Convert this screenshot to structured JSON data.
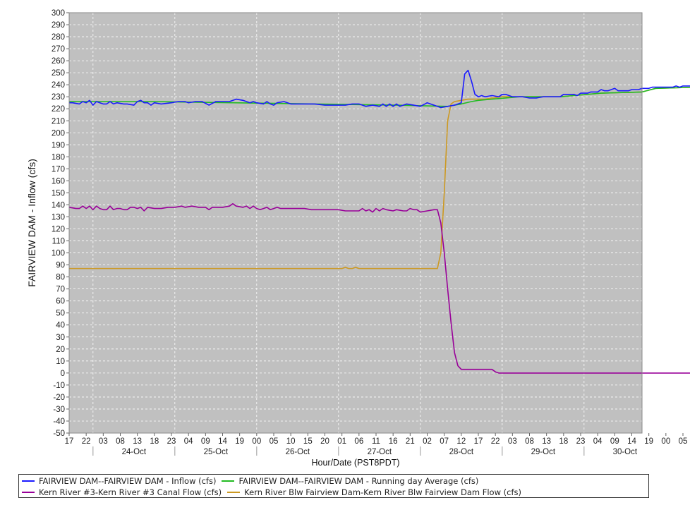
{
  "chart_data": {
    "type": "line",
    "ylabel": "FAIRVIEW DAM - Inflow (cfs)",
    "xlabel": "Hour/Date (PST8PDT)",
    "ylim": [
      -50,
      300
    ],
    "ytick_step": 10,
    "grid": true,
    "x_range_hours": [
      -7,
      161
    ],
    "hour_tick_labels": [
      "17",
      "22",
      "03",
      "08",
      "13",
      "18",
      "23",
      "04",
      "09",
      "14",
      "19",
      "00",
      "05",
      "10",
      "15",
      "20",
      "01",
      "06",
      "11",
      "16",
      "21",
      "02",
      "07",
      "12",
      "17",
      "22",
      "03",
      "08",
      "13",
      "18",
      "23",
      "04",
      "09",
      "14",
      "19",
      "00",
      "05"
    ],
    "date_labels": [
      "24-Oct",
      "25-Oct",
      "26-Oct",
      "27-Oct",
      "28-Oct",
      "29-Oct",
      "30-Oct"
    ],
    "legend_position": "bottom",
    "series": [
      {
        "name": "FAIRVIEW DAM--FAIRVIEW DAM - Inflow (cfs)",
        "color": "#1a1aff",
        "points": [
          [
            -7,
            225
          ],
          [
            -6,
            225
          ],
          [
            -4,
            224
          ],
          [
            -3,
            226
          ],
          [
            -2,
            225
          ],
          [
            -1,
            227
          ],
          [
            0,
            223
          ],
          [
            1,
            226
          ],
          [
            2,
            225
          ],
          [
            3,
            224
          ],
          [
            4,
            224
          ],
          [
            5,
            226
          ],
          [
            6,
            224
          ],
          [
            7,
            225
          ],
          [
            9,
            224
          ],
          [
            10,
            224
          ],
          [
            12,
            223
          ],
          [
            13,
            226
          ],
          [
            14,
            227
          ],
          [
            15,
            225
          ],
          [
            16,
            225
          ],
          [
            17,
            223
          ],
          [
            18,
            225
          ],
          [
            20,
            224
          ],
          [
            23,
            225
          ],
          [
            25,
            226
          ],
          [
            27,
            226
          ],
          [
            28,
            225
          ],
          [
            30,
            226
          ],
          [
            32,
            226
          ],
          [
            34,
            223
          ],
          [
            36,
            226
          ],
          [
            38,
            226
          ],
          [
            40,
            226
          ],
          [
            42,
            228
          ],
          [
            44,
            227
          ],
          [
            46,
            225
          ],
          [
            47,
            226
          ],
          [
            48,
            225
          ],
          [
            50,
            224
          ],
          [
            51,
            226
          ],
          [
            52,
            224
          ],
          [
            53,
            223
          ],
          [
            54,
            225
          ],
          [
            56,
            226
          ],
          [
            58,
            224
          ],
          [
            60,
            224
          ],
          [
            65,
            224
          ],
          [
            68,
            223
          ],
          [
            70,
            223
          ],
          [
            74,
            223
          ],
          [
            76,
            224
          ],
          [
            78,
            224
          ],
          [
            80,
            222
          ],
          [
            82,
            223
          ],
          [
            84,
            222
          ],
          [
            85,
            224
          ],
          [
            86,
            222
          ],
          [
            87,
            224
          ],
          [
            88,
            222
          ],
          [
            89,
            224
          ],
          [
            90,
            222
          ],
          [
            92,
            224
          ],
          [
            94,
            223
          ],
          [
            96,
            222
          ],
          [
            98,
            225
          ],
          [
            100,
            223
          ],
          [
            102,
            221
          ],
          [
            104,
            222
          ],
          [
            106,
            223
          ],
          [
            108,
            225
          ],
          [
            109,
            249
          ],
          [
            110,
            252
          ],
          [
            111,
            243
          ],
          [
            112,
            232
          ],
          [
            113,
            230
          ],
          [
            114,
            231
          ],
          [
            115,
            230
          ],
          [
            117,
            231
          ],
          [
            119,
            230
          ],
          [
            120,
            232
          ],
          [
            121,
            232
          ],
          [
            123,
            230
          ],
          [
            126,
            230
          ],
          [
            128,
            229
          ],
          [
            130,
            229
          ],
          [
            132,
            230
          ],
          [
            137,
            230
          ],
          [
            138,
            232
          ],
          [
            141,
            232
          ],
          [
            142,
            231
          ],
          [
            143,
            233
          ],
          [
            145,
            233
          ],
          [
            146,
            234
          ],
          [
            148,
            234
          ],
          [
            149,
            236
          ],
          [
            150,
            235
          ],
          [
            151,
            235
          ],
          [
            152,
            236
          ],
          [
            153,
            237
          ],
          [
            154,
            235
          ],
          [
            157,
            235
          ],
          [
            158,
            236
          ],
          [
            160,
            236
          ],
          [
            161,
            237
          ],
          [
            163,
            237
          ],
          [
            164,
            238
          ],
          [
            166,
            238
          ],
          [
            170,
            238
          ],
          [
            171,
            239
          ],
          [
            172,
            238
          ],
          [
            173,
            239
          ],
          [
            176,
            239
          ],
          [
            178,
            239
          ],
          [
            179,
            238
          ],
          [
            180,
            239
          ],
          [
            182,
            239
          ],
          [
            183,
            241
          ],
          [
            184,
            241
          ],
          [
            185,
            239
          ],
          [
            188,
            239
          ],
          [
            190,
            239
          ],
          [
            191,
            240
          ],
          [
            192,
            239
          ]
        ]
      },
      {
        "name": "FAIRVIEW DAM--FAIRVIEW DAM - Running day Average (cfs)",
        "color": "#22bb22",
        "points": [
          [
            -7,
            226
          ],
          [
            17,
            226
          ],
          [
            41,
            225
          ],
          [
            65,
            224
          ],
          [
            89,
            223
          ],
          [
            104,
            222
          ],
          [
            108,
            224
          ],
          [
            111,
            226
          ],
          [
            113,
            227
          ],
          [
            117,
            228
          ],
          [
            121,
            229
          ],
          [
            125,
            230
          ],
          [
            137,
            230
          ],
          [
            141,
            231
          ],
          [
            149,
            233
          ],
          [
            161,
            234
          ],
          [
            165,
            237
          ],
          [
            177,
            238
          ],
          [
            192,
            239
          ]
        ]
      },
      {
        "name": "Kern River #3-Kern River #3 Canal Flow (cfs)",
        "color": "#990099",
        "points": [
          [
            -7,
            138
          ],
          [
            -5,
            137
          ],
          [
            -4,
            137
          ],
          [
            -3,
            139
          ],
          [
            -2,
            137
          ],
          [
            -1,
            139
          ],
          [
            0,
            136
          ],
          [
            1,
            139
          ],
          [
            2,
            137
          ],
          [
            3,
            136
          ],
          [
            4,
            136
          ],
          [
            5,
            139
          ],
          [
            6,
            136
          ],
          [
            7,
            137
          ],
          [
            8,
            137
          ],
          [
            9,
            136
          ],
          [
            10,
            136
          ],
          [
            11,
            138
          ],
          [
            12,
            138
          ],
          [
            13,
            137
          ],
          [
            14,
            138
          ],
          [
            15,
            135
          ],
          [
            16,
            138
          ],
          [
            18,
            137
          ],
          [
            20,
            137
          ],
          [
            22,
            138
          ],
          [
            24,
            138
          ],
          [
            26,
            139
          ],
          [
            27,
            138
          ],
          [
            29,
            139
          ],
          [
            31,
            138
          ],
          [
            33,
            138
          ],
          [
            34,
            136
          ],
          [
            35,
            138
          ],
          [
            38,
            138
          ],
          [
            40,
            139
          ],
          [
            41,
            141
          ],
          [
            42,
            139
          ],
          [
            44,
            138
          ],
          [
            45,
            139
          ],
          [
            46,
            137
          ],
          [
            47,
            139
          ],
          [
            48,
            137
          ],
          [
            49,
            136
          ],
          [
            50,
            137
          ],
          [
            51,
            138
          ],
          [
            52,
            136
          ],
          [
            53,
            137
          ],
          [
            54,
            138
          ],
          [
            55,
            137
          ],
          [
            58,
            137
          ],
          [
            62,
            137
          ],
          [
            64,
            136
          ],
          [
            66,
            136
          ],
          [
            68,
            136
          ],
          [
            72,
            136
          ],
          [
            74,
            135
          ],
          [
            76,
            135
          ],
          [
            78,
            135
          ],
          [
            79,
            137
          ],
          [
            80,
            135
          ],
          [
            81,
            136
          ],
          [
            82,
            134
          ],
          [
            83,
            137
          ],
          [
            84,
            135
          ],
          [
            85,
            137
          ],
          [
            86,
            136
          ],
          [
            88,
            135
          ],
          [
            89,
            136
          ],
          [
            91,
            135
          ],
          [
            92,
            135
          ],
          [
            93,
            137
          ],
          [
            94,
            136
          ],
          [
            95,
            136
          ],
          [
            96,
            134
          ],
          [
            98,
            135
          ],
          [
            100,
            136
          ],
          [
            101,
            136
          ],
          [
            102,
            125
          ],
          [
            103,
            100
          ],
          [
            104,
            70
          ],
          [
            105,
            42
          ],
          [
            106,
            17
          ],
          [
            107,
            6
          ],
          [
            108,
            3
          ],
          [
            112,
            3
          ],
          [
            115,
            3
          ],
          [
            117,
            3
          ],
          [
            118,
            1
          ],
          [
            119,
            0
          ],
          [
            130,
            0
          ],
          [
            150,
            0
          ],
          [
            170,
            0
          ],
          [
            192,
            0
          ]
        ]
      },
      {
        "name": "Kern River Blw Fairview Dam-Kern River Blw Fairview Dam Flow (cfs)",
        "color": "#cc9922",
        "points": [
          [
            -7,
            87
          ],
          [
            60,
            87
          ],
          [
            73,
            87
          ],
          [
            74,
            88
          ],
          [
            75,
            87
          ],
          [
            76,
            87
          ],
          [
            77,
            88
          ],
          [
            78,
            87
          ],
          [
            101,
            87
          ],
          [
            102,
            100
          ],
          [
            103,
            150
          ],
          [
            104,
            210
          ],
          [
            105,
            224
          ],
          [
            106,
            226
          ],
          [
            108,
            227
          ],
          [
            110,
            228
          ],
          [
            113,
            228
          ],
          [
            115,
            228
          ],
          [
            117,
            229
          ],
          [
            120,
            230
          ],
          [
            130,
            230
          ],
          [
            137,
            230
          ],
          [
            141,
            231
          ],
          [
            149,
            233
          ],
          [
            161,
            234
          ],
          [
            165,
            237
          ],
          [
            177,
            238
          ],
          [
            192,
            239
          ]
        ]
      }
    ]
  }
}
